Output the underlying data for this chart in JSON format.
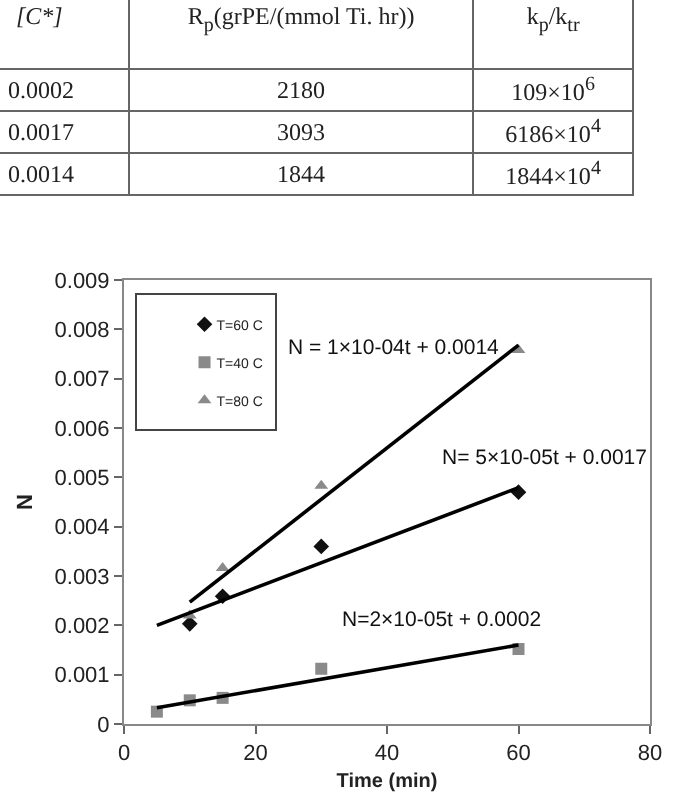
{
  "chart_data": [
    {
      "type": "other",
      "annotations": [
        "[C*]",
        "R$_{p}$(grPE/(mmol Ti. hr))",
        "k$_{p}$/k$_{tr}$",
        "0.0002",
        "2180",
        "109×10$^{6}$",
        "0.0017",
        "3093",
        "6186×10$^{4}$",
        "0.0014",
        "1844",
        "1844×10$^{4}$"
      ]
    },
    {
      "type": "scatter",
      "xlabel": "Time (min)",
      "ylabel": "N",
      "xlim": [
        0,
        80
      ],
      "xticks": [
        0,
        20,
        40,
        60,
        80
      ],
      "ylim": [
        0,
        0.009
      ],
      "yticks": [
        0,
        0.001,
        0.002,
        0.003,
        0.004,
        0.005,
        0.006,
        0.007,
        0.008,
        0.009
      ],
      "legend": "top left",
      "grid": false,
      "series": [
        {
          "name": "T=60 C",
          "type": "scatter",
          "marker": "diamond",
          "color": "#111111",
          "x": [
            10,
            15,
            30,
            60
          ],
          "values": [
            0.00203,
            0.00259,
            0.0036,
            0.0047
          ]
        },
        {
          "name": "T=40 C",
          "type": "scatter",
          "marker": "square",
          "color": "#8a8a8a",
          "x": [
            5,
            10,
            15,
            30,
            60
          ],
          "values": [
            0.00025,
            0.00048,
            0.00053,
            0.00112,
            0.00152
          ]
        },
        {
          "name": "T=80 C",
          "type": "scatter",
          "marker": "triangle",
          "color": "#8a8a8a",
          "x": [
            10,
            15,
            30,
            60
          ],
          "values": [
            0.0022,
            0.00316,
            0.00483,
            0.00758
          ]
        },
        {
          "type": "line",
          "marker": "none",
          "line_style": "solid",
          "color": "#000000",
          "x": [
            10,
            60
          ],
          "values": [
            0.00247,
            0.00768
          ]
        },
        {
          "type": "line",
          "marker": "none",
          "line_style": "solid",
          "color": "#000000",
          "x": [
            5,
            60
          ],
          "values": [
            0.002,
            0.00479
          ]
        },
        {
          "type": "line",
          "marker": "none",
          "line_style": "solid",
          "color": "#000000",
          "x": [
            5,
            60
          ],
          "values": [
            0.00033,
            0.0016
          ]
        }
      ],
      "annotations": [
        "N = 1×10-04t + 0.0014",
        "N= 5×10-05t + 0.0017",
        "N=2×10-05t + 0.0002"
      ]
    }
  ]
}
